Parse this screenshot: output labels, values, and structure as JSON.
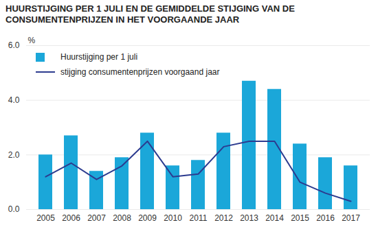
{
  "chart_data": {
    "type": "bar",
    "title": "HUURSTIJGING PER 1 JULI EN DE GEMIDDELDE STIJGING VAN DE CONSUMENTENPRIJZEN IN HET VOORGAANDE JAAR",
    "y_label": "%",
    "categories": [
      "2005",
      "2006",
      "2007",
      "2008",
      "2009",
      "2010",
      "2011",
      "2012",
      "2013",
      "2014",
      "2015",
      "2016",
      "2017"
    ],
    "series": [
      {
        "name": "Huurstijging per 1 juli",
        "type": "bar",
        "color": "#1ba7d9",
        "values": [
          2.0,
          2.7,
          1.4,
          1.9,
          2.8,
          1.6,
          1.8,
          2.8,
          4.7,
          4.4,
          2.4,
          1.9,
          1.6
        ]
      },
      {
        "name": "stijging consumentenprijzen voorgaand jaar",
        "type": "line",
        "color": "#2c3b8f",
        "values": [
          1.2,
          1.7,
          1.1,
          1.6,
          2.5,
          1.2,
          1.3,
          2.3,
          2.5,
          2.5,
          1.0,
          0.6,
          0.3
        ]
      }
    ],
    "ylim": [
      0,
      6
    ],
    "yticks": [
      0,
      2,
      4,
      6
    ],
    "grid": true,
    "legend": "top-left"
  }
}
